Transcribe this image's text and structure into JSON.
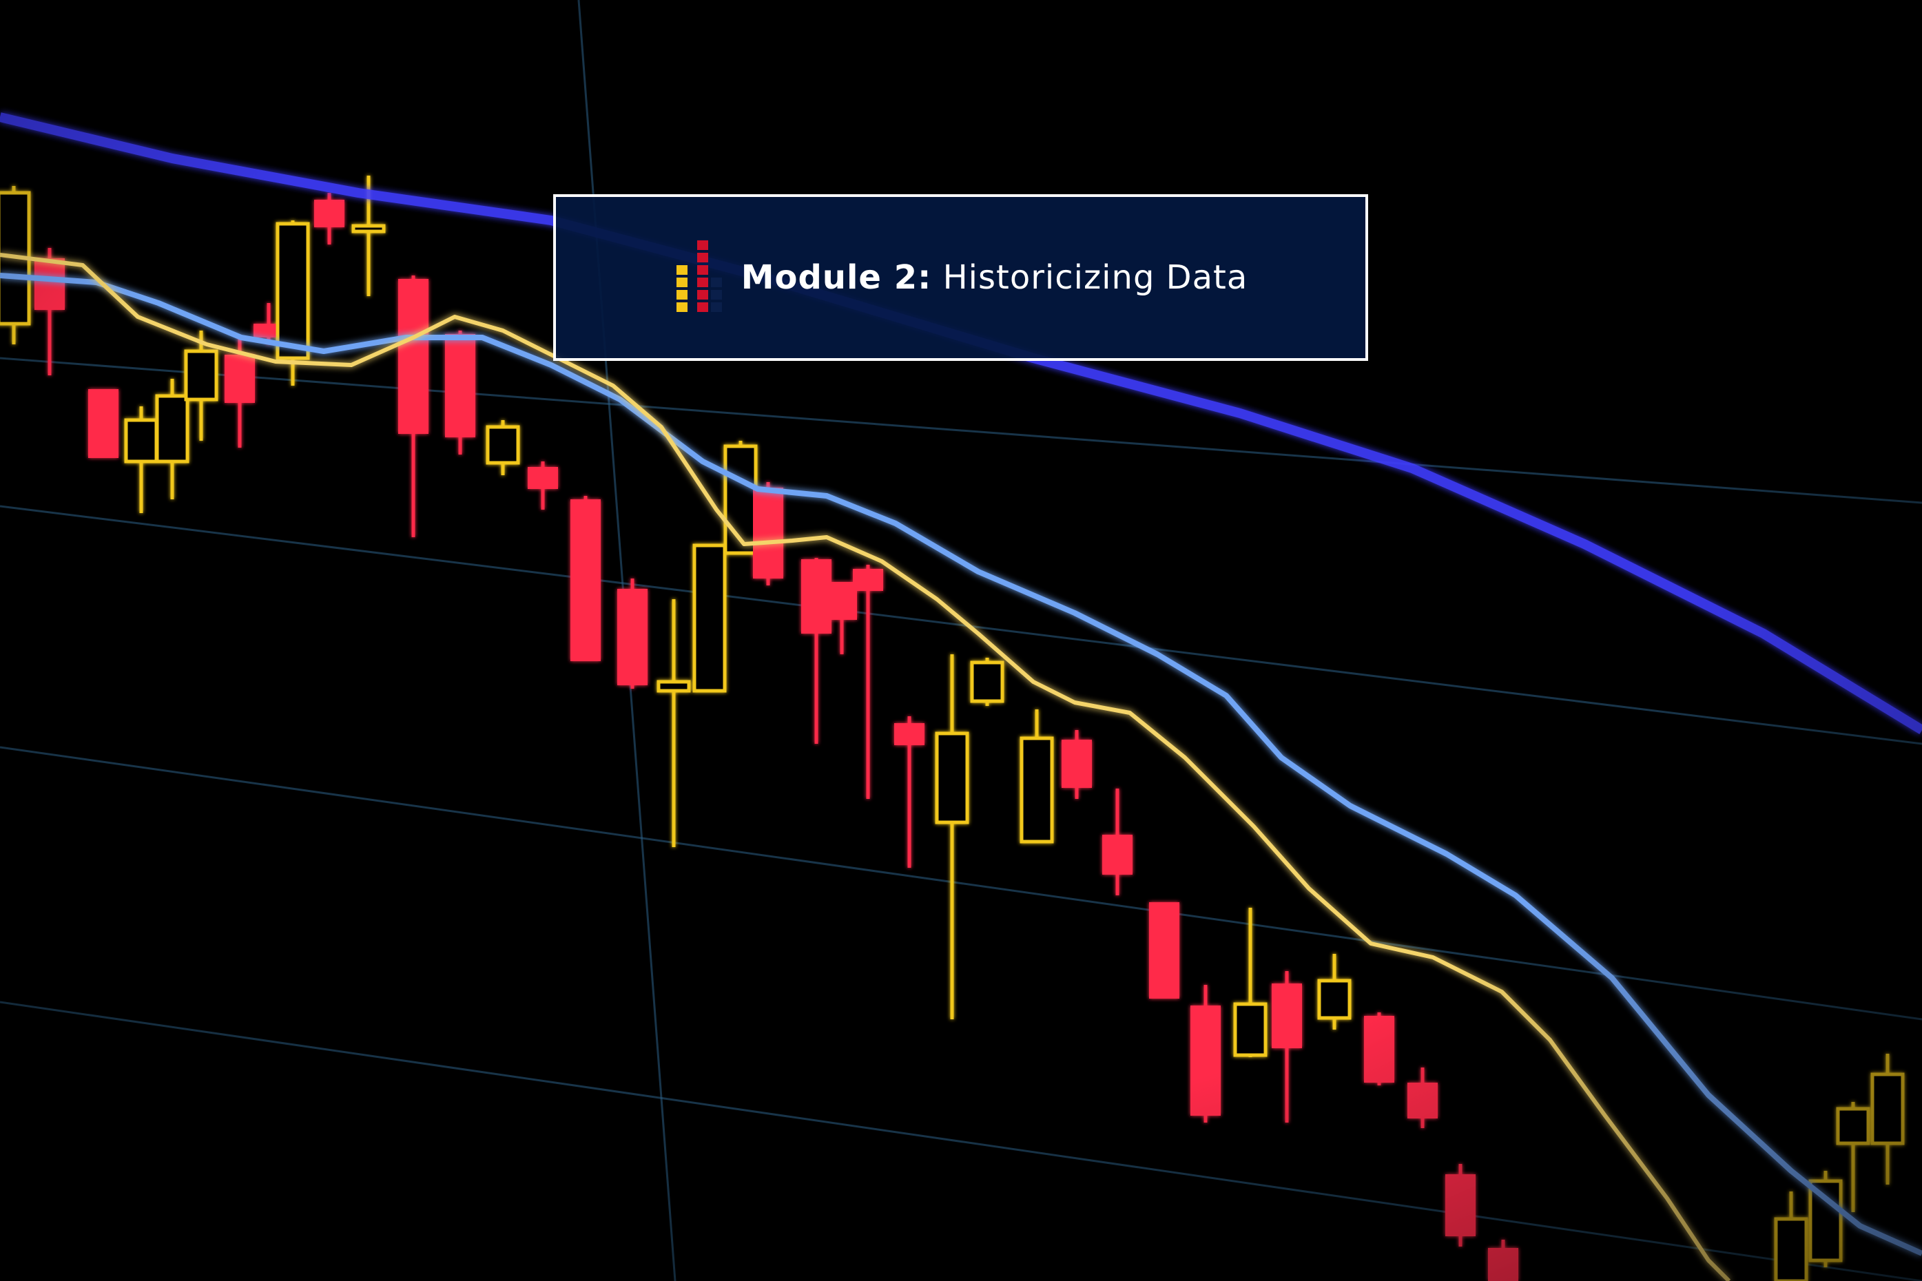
{
  "banner": {
    "module_label": "Module 2:",
    "module_title": "Historicizing Data",
    "icon": "bar-chart-icon"
  },
  "colors": {
    "background": "#000000",
    "banner_background": "#031840",
    "banner_border": "#ffffff",
    "candle_bearish": "#ff2a48",
    "candle_bullish": "#f2c81f",
    "fast_moving_average": "#f4d46a",
    "medium_moving_average": "#6fa4f4",
    "slow_moving_average": "#3f3dff",
    "icon_yellow": "#f5c518",
    "icon_red": "#d0102a",
    "icon_navy": "#0a1f4a"
  }
}
